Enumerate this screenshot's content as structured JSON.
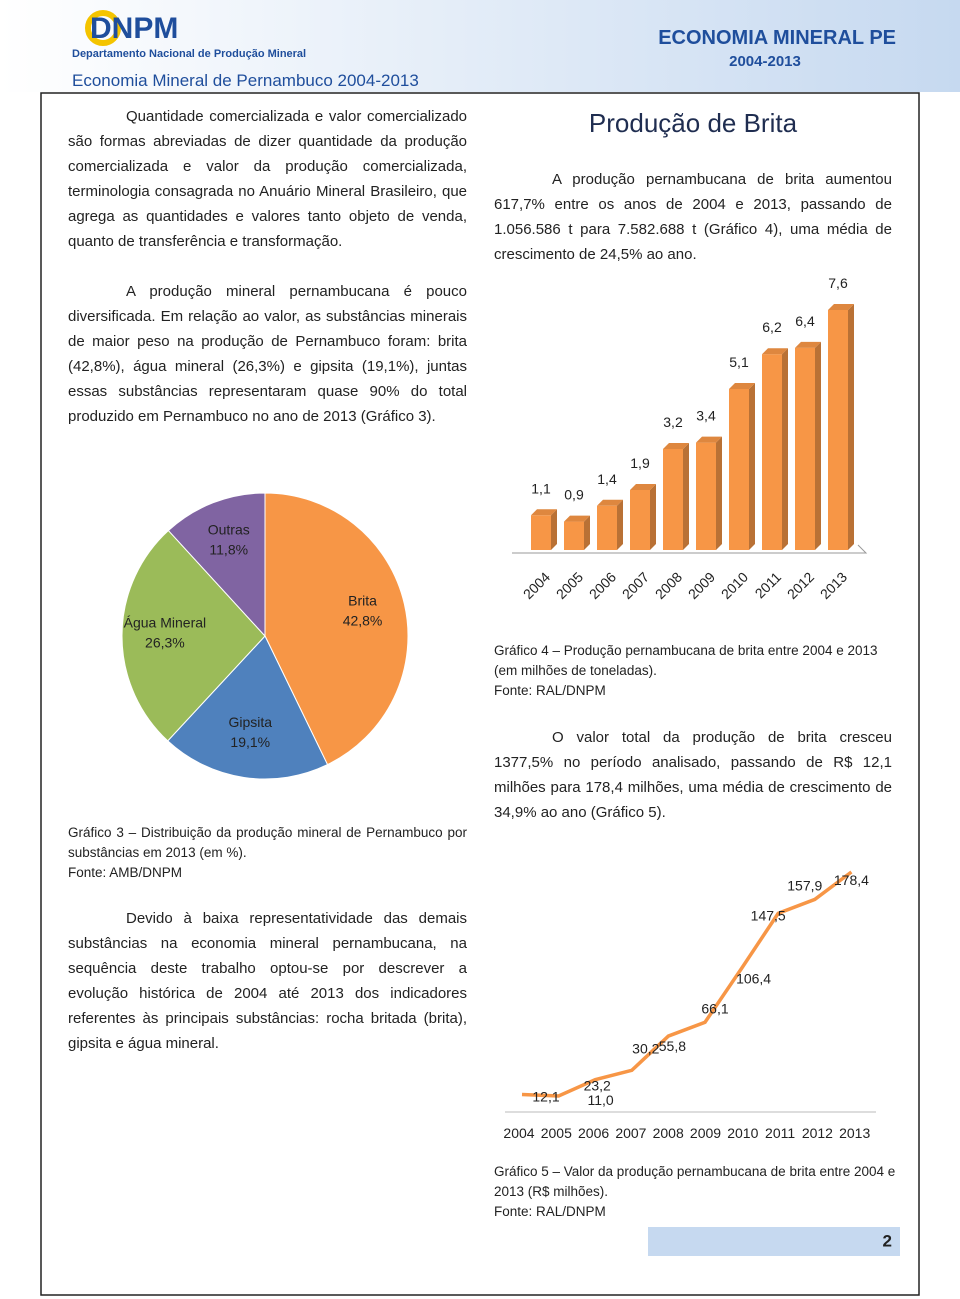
{
  "header": {
    "logo": "DNPM",
    "organization": "Departamento Nacional de Produção Mineral",
    "title": "Economia Mineral de Pernambuco 2004-2013",
    "brand": "ECONOMIA MINERAL PE",
    "period": "2004-2013"
  },
  "left": {
    "paragraphs": [
      "Quantidade comercializada e valor comercializado são formas abreviadas de dizer quantidade da produção comercializada e valor da produção comercializada, terminologia consagrada no Anuário Mineral Brasileiro, que agrega as quantidades e valores tanto objeto de venda, quanto de transferência e transformação.",
      "A produção mineral pernambucana é pouco diversificada. Em relação ao valor, as substâncias minerais de maior peso na produção de Pernambuco foram: brita (42,8%), água mineral (26,3%) e gipsita (19,1%), juntas essas substâncias representaram quase 90% do total produzido em Pernambuco no ano de 2013 (Gráfico 3).",
      "Devido à baixa representatividade das demais substâncias na economia mineral pernambucana, na sequência deste trabalho optou-se por descrever a evolução histórica de 2004 até 2013 dos indicadores referentes às principais substâncias: rocha britada (brita), gipsita e água mineral."
    ]
  },
  "right": {
    "heading": "Produção de Brita",
    "paragraphs": [
      "A produção pernambucana de brita aumentou 617,7% entre os anos de 2004 e 2013, passando de 1.056.586 t para 7.582.688 t (Gráfico 4), uma média de crescimento de 24,5% ao ano.",
      "O valor total da produção de brita cresceu 1377,5% no período analisado, passando de R$ 12,1 milhões para 178,4 milhões, uma média de crescimento de 34,9% ao ano (Gráfico 5)."
    ]
  },
  "captions": [
    {
      "text": "Gráfico 3 – Distribuição da produção mineral de Pernambuco por substâncias em 2013 (em %).",
      "source": "Fonte: AMB/DNPM"
    },
    {
      "text": "Gráfico 4 – Produção pernambucana de brita entre 2004 e 2013 (em milhões de toneladas).",
      "source": "Fonte: RAL/DNPM"
    },
    {
      "text": "Gráfico 5 – Valor da produção pernambucana de brita entre 2004 e 2013 (R$ milhões).",
      "source": "Fonte: RAL/DNPM"
    }
  ],
  "chart_data": [
    {
      "type": "pie",
      "categories": [
        "Brita",
        "Gipsita",
        "Água Mineral",
        "Outras"
      ],
      "values": [
        42.8,
        19.1,
        26.3,
        11.8
      ],
      "value_labels": [
        "42,8%",
        "19,1%",
        "26,3%",
        "11,8%"
      ],
      "colors": [
        "#f79646",
        "#4f81bd",
        "#9bbb59",
        "#8064a2"
      ]
    },
    {
      "type": "bar",
      "categories": [
        "2004",
        "2005",
        "2006",
        "2007",
        "2008",
        "2009",
        "2010",
        "2011",
        "2012",
        "2013"
      ],
      "values": [
        1.1,
        0.9,
        1.4,
        1.9,
        3.2,
        3.4,
        5.1,
        6.2,
        6.4,
        7.6
      ],
      "value_labels": [
        "1,1",
        "0,9",
        "1,4",
        "1,9",
        "3,2",
        "3,4",
        "5,1",
        "6,2",
        "6,4",
        "7,6"
      ],
      "color": "#f79646"
    },
    {
      "type": "line",
      "categories": [
        "2004",
        "2005",
        "2006",
        "2007",
        "2008",
        "2009",
        "2010",
        "2011",
        "2012",
        "2013"
      ],
      "values": [
        12.1,
        11.0,
        23.2,
        30.2,
        55.8,
        66.1,
        106.4,
        147.5,
        157.9,
        178.4
      ],
      "value_labels": [
        "12,1",
        "11,0",
        "23,2",
        "30,2",
        "55,8",
        "66,1",
        "106,4",
        "147,5",
        "157,9",
        "178,4"
      ],
      "color": "#f79646"
    }
  ],
  "page_number": "2"
}
